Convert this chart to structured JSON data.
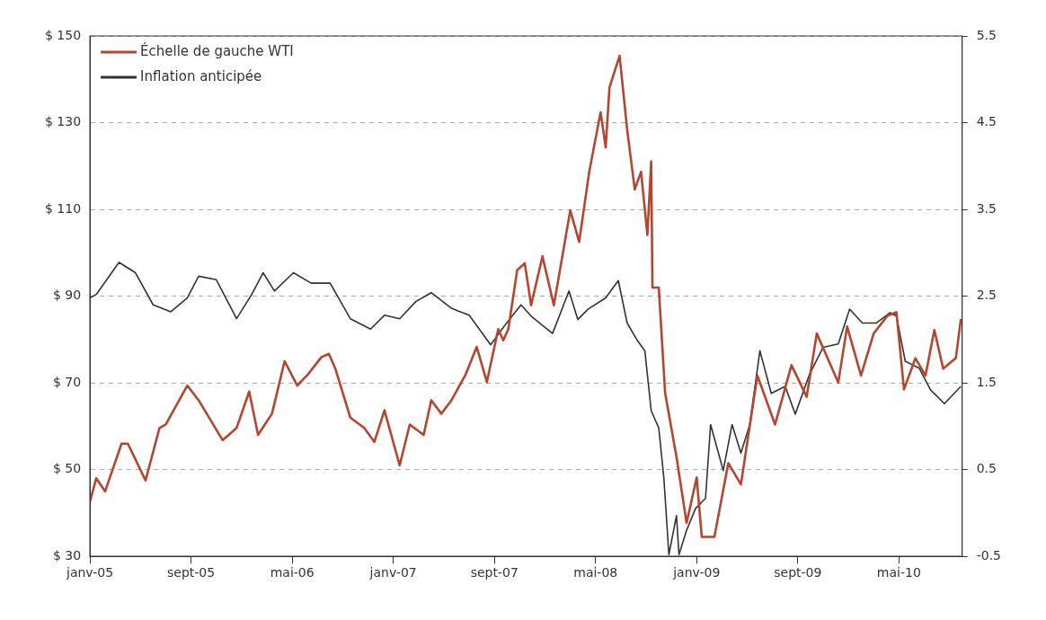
{
  "chart_data": {
    "type": "line",
    "xlim": [
      "2005-01-01",
      "2010-10-01"
    ],
    "xticks": [
      {
        "value": "2005-01-01",
        "label": "janv-05"
      },
      {
        "value": "2005-09-01",
        "label": "sept-05"
      },
      {
        "value": "2006-05-01",
        "label": "mai-06"
      },
      {
        "value": "2007-01-01",
        "label": "janv-07"
      },
      {
        "value": "2007-09-01",
        "label": "sept-07"
      },
      {
        "value": "2008-05-01",
        "label": "mai-08"
      },
      {
        "value": "2009-01-01",
        "label": "janv-09"
      },
      {
        "value": "2009-09-01",
        "label": "sept-09"
      },
      {
        "value": "2010-05-01",
        "label": "mai-10"
      }
    ],
    "ylim": [
      30,
      150
    ],
    "yticks": [
      {
        "value": 30,
        "label": "$ 30"
      },
      {
        "value": 50,
        "label": "$ 50"
      },
      {
        "value": 70,
        "label": "$ 70"
      },
      {
        "value": 90,
        "label": "$ 90"
      },
      {
        "value": 110,
        "label": "$ 110"
      },
      {
        "value": 130,
        "label": "$ 130"
      },
      {
        "value": 150,
        "label": "$ 150"
      }
    ],
    "y2lim": [
      -0.5,
      5.5
    ],
    "y2ticks": [
      -0.5,
      0.5,
      1.5,
      2.5,
      3.5,
      4.5,
      5.5
    ],
    "grid": "y",
    "legend": "top left",
    "marker": "none",
    "line_style": "solid",
    "series": [
      {
        "name": "Échelle de gauche WTI",
        "color": "#b5452f",
        "x": [
          "2005-01-01",
          "2005-01-16",
          "2005-02-07",
          "2005-03-16",
          "2005-04-01",
          "2005-05-13",
          "2005-06-16",
          "2005-07-01",
          "2005-08-22",
          "2005-09-19",
          "2005-11-16",
          "2005-12-19",
          "2006-01-19",
          "2006-02-10",
          "2006-03-13",
          "2006-04-13",
          "2006-05-13",
          "2006-06-07",
          "2006-07-10",
          "2006-07-28",
          "2006-08-13",
          "2006-09-19",
          "2006-10-22",
          "2006-11-16",
          "2006-12-10",
          "2007-01-16",
          "2007-02-10",
          "2007-03-13",
          "2007-04-01",
          "2007-04-25",
          "2007-05-19",
          "2007-06-22",
          "2007-07-19",
          "2007-08-13",
          "2007-09-10",
          "2007-09-22",
          "2007-10-04",
          "2007-10-25",
          "2007-11-13",
          "2007-11-28",
          "2007-12-25",
          "2008-01-22",
          "2008-03-01",
          "2008-03-22",
          "2008-04-16",
          "2008-05-13",
          "2008-05-25",
          "2008-06-04",
          "2008-06-28",
          "2008-07-16",
          "2008-08-04",
          "2008-08-19",
          "2008-09-04",
          "2008-09-13",
          "2008-09-16",
          "2008-10-01",
          "2008-10-16",
          "2008-11-13",
          "2008-12-07",
          "2009-01-01",
          "2009-01-13",
          "2009-02-13",
          "2009-03-16",
          "2009-04-16",
          "2009-05-25",
          "2009-07-07",
          "2009-08-16",
          "2009-09-22",
          "2009-10-16",
          "2009-12-07",
          "2009-12-28",
          "2010-02-01",
          "2010-03-01",
          "2010-04-04",
          "2010-04-25",
          "2010-05-13",
          "2010-06-10",
          "2010-07-04",
          "2010-07-25",
          "2010-08-16",
          "2010-09-16",
          "2010-09-28"
        ],
        "values": [
          42.6,
          48,
          45,
          56,
          56,
          47.5,
          59.6,
          60.4,
          69.4,
          66,
          56.8,
          59.6,
          68,
          58,
          62.9,
          75,
          69.4,
          71.8,
          75.9,
          76.7,
          73.4,
          62,
          59.6,
          56.4,
          63.7,
          51,
          60.4,
          58,
          66,
          62.9,
          66,
          71.8,
          78.3,
          70.2,
          82.4,
          79.8,
          82.4,
          96,
          97.6,
          87.9,
          99.2,
          87.9,
          109.8,
          102.5,
          118.7,
          132.4,
          124.3,
          138.1,
          145.4,
          128.4,
          114.6,
          118.7,
          104.1,
          121.1,
          92,
          92,
          67.7,
          53,
          37.7,
          48.2,
          34.5,
          34.5,
          51.5,
          46.6,
          71.7,
          60.4,
          74.1,
          66.8,
          81.4,
          70.1,
          83,
          71.7,
          81.4,
          85.5,
          86.3,
          68.5,
          75.7,
          71.7,
          82.2,
          73.3,
          75.7,
          84.7
        ]
      },
      {
        "name": "Inflation anticipée",
        "color": "#333333",
        "axis": "y2",
        "x": [
          "2005-01-01",
          "2005-01-16",
          "2005-03-10",
          "2005-04-19",
          "2005-06-01",
          "2005-07-13",
          "2005-08-22",
          "2005-09-19",
          "2005-11-01",
          "2005-12-19",
          "2006-01-25",
          "2006-02-22",
          "2006-03-19",
          "2006-05-04",
          "2006-06-16",
          "2006-08-01",
          "2006-09-19",
          "2006-11-07",
          "2006-12-10",
          "2007-01-16",
          "2007-02-25",
          "2007-04-01",
          "2007-05-19",
          "2007-07-01",
          "2007-08-22",
          "2007-09-25",
          "2007-11-04",
          "2007-11-28",
          "2008-01-19",
          "2008-02-28",
          "2008-03-19",
          "2008-04-13",
          "2008-05-25",
          "2008-06-25",
          "2008-07-16",
          "2008-08-10",
          "2008-08-28",
          "2008-09-13",
          "2008-10-01",
          "2008-10-13",
          "2008-10-25",
          "2008-11-13",
          "2008-11-19",
          "2008-12-07",
          "2008-12-28",
          "2009-01-22",
          "2009-02-04",
          "2009-03-04",
          "2009-03-25",
          "2009-04-16",
          "2009-05-07",
          "2009-06-01",
          "2009-06-28",
          "2009-08-01",
          "2009-08-25",
          "2009-09-28",
          "2009-11-01",
          "2009-12-07",
          "2010-01-04",
          "2010-02-04",
          "2010-03-07",
          "2010-04-10",
          "2010-04-25",
          "2010-05-16",
          "2010-06-19",
          "2010-07-16",
          "2010-08-19",
          "2010-09-28"
        ],
        "values": [
          2.48,
          2.52,
          2.89,
          2.77,
          2.4,
          2.32,
          2.48,
          2.73,
          2.69,
          2.24,
          2.52,
          2.77,
          2.56,
          2.77,
          2.65,
          2.65,
          2.24,
          2.12,
          2.28,
          2.24,
          2.44,
          2.54,
          2.36,
          2.28,
          1.94,
          2.16,
          2.4,
          2.27,
          2.07,
          2.56,
          2.23,
          2.35,
          2.48,
          2.68,
          2.19,
          1.99,
          1.87,
          1.18,
          0.98,
          0.41,
          -0.48,
          -0.03,
          -0.48,
          -0.2,
          0.05,
          0.17,
          1.02,
          0.49,
          1.02,
          0.69,
          1.02,
          1.87,
          1.38,
          1.46,
          1.14,
          1.59,
          1.91,
          1.95,
          2.35,
          2.19,
          2.19,
          2.31,
          2.27,
          1.75,
          1.67,
          1.42,
          1.26,
          1.46
        ]
      }
    ]
  }
}
